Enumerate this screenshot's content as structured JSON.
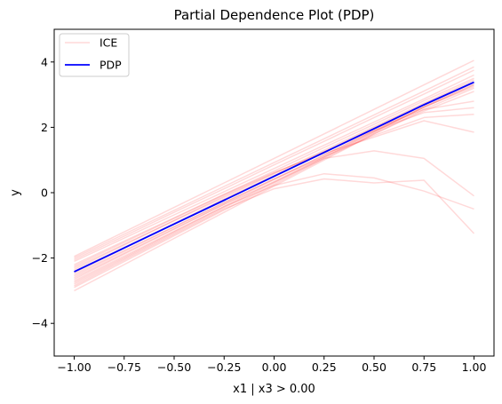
{
  "chart_data": {
    "type": "line",
    "title": "Partial Dependence Plot (PDP)",
    "xlabel": "x1 | x3 > 0.00",
    "ylabel": "y",
    "xlim": [
      -1.1,
      1.1
    ],
    "ylim": [
      -5,
      5
    ],
    "x_ticks": [
      -1.0,
      -0.75,
      -0.5,
      -0.25,
      0.0,
      0.25,
      0.5,
      0.75,
      1.0
    ],
    "x_tick_labels": [
      "−1.00",
      "−0.75",
      "−0.50",
      "−0.25",
      "0.00",
      "0.25",
      "0.50",
      "0.75",
      "1.00"
    ],
    "y_ticks": [
      -4,
      -2,
      0,
      2,
      4
    ],
    "y_tick_labels": [
      "−4",
      "−2",
      "0",
      "2",
      "4"
    ],
    "grid": false,
    "legend": {
      "position": "top-left",
      "entries": [
        {
          "label": "ICE",
          "color": "#ff0000",
          "opacity": 0.15
        },
        {
          "label": "PDP",
          "color": "#0000ff",
          "opacity": 1
        }
      ]
    },
    "ice_color": "#ff0000",
    "pdp_color": "#0000ff",
    "x": [
      -1.0,
      -0.75,
      -0.5,
      -0.25,
      0.0,
      0.25,
      0.5,
      0.75,
      1.0
    ],
    "series": [
      {
        "values": [
          -1.95,
          -1.2,
          -0.45,
          0.3,
          1.05,
          1.8,
          2.55,
          3.3,
          4.05
        ]
      },
      {
        "values": [
          -2.0,
          -1.27,
          -0.54,
          0.19,
          0.92,
          1.65,
          2.38,
          3.11,
          3.85
        ]
      },
      {
        "values": [
          -2.05,
          -1.33,
          -0.6,
          0.12,
          0.85,
          1.57,
          2.3,
          3.02,
          3.75
        ]
      },
      {
        "values": [
          -2.1,
          -1.39,
          -0.68,
          0.03,
          0.74,
          1.45,
          2.16,
          2.87,
          3.6
        ]
      },
      {
        "values": [
          -2.2,
          -1.48,
          -0.77,
          -0.05,
          0.66,
          1.38,
          2.09,
          2.81,
          3.5
        ]
      },
      {
        "values": [
          -2.3,
          -1.58,
          -0.86,
          -0.14,
          0.58,
          1.3,
          2.02,
          2.74,
          3.45
        ]
      },
      {
        "values": [
          -2.4,
          -1.67,
          -0.94,
          -0.21,
          0.52,
          1.25,
          1.98,
          2.71,
          3.4
        ]
      },
      {
        "values": [
          -2.5,
          -1.77,
          -1.04,
          -0.31,
          0.42,
          1.15,
          1.88,
          2.61,
          3.3
        ]
      },
      {
        "values": [
          -2.6,
          -1.85,
          -1.1,
          -0.35,
          0.4,
          1.15,
          1.9,
          2.65,
          3.35
        ]
      },
      {
        "values": [
          -2.7,
          -1.94,
          -1.18,
          -0.42,
          0.34,
          1.1,
          1.86,
          2.62,
          3.3
        ]
      },
      {
        "values": [
          -2.8,
          -2.02,
          -1.24,
          -0.46,
          0.3,
          1.08,
          1.84,
          2.62,
          3.25
        ]
      },
      {
        "values": [
          -2.9,
          -2.11,
          -1.32,
          -0.53,
          0.25,
          1.04,
          1.8,
          2.55,
          3.2
        ]
      },
      {
        "values": [
          -3.0,
          -2.2,
          -1.4,
          -0.6,
          0.2,
          1.0,
          1.8,
          2.5,
          3.1
        ]
      },
      {
        "values": [
          -2.45,
          -1.7,
          -0.95,
          -0.2,
          0.52,
          1.25,
          1.95,
          2.55,
          2.8
        ]
      },
      {
        "values": [
          -2.35,
          -1.6,
          -0.85,
          -0.1,
          0.6,
          1.25,
          1.9,
          2.45,
          2.6
        ]
      },
      {
        "values": [
          -2.55,
          -1.8,
          -1.05,
          -0.3,
          0.42,
          1.1,
          1.75,
          2.3,
          2.4
        ]
      },
      {
        "values": [
          -2.25,
          -1.52,
          -0.79,
          -0.06,
          0.62,
          1.2,
          1.7,
          2.2,
          1.85
        ]
      },
      {
        "values": [
          -2.65,
          -1.88,
          -1.12,
          -0.36,
          0.32,
          1.05,
          1.28,
          1.05,
          -0.1
        ]
      },
      {
        "values": [
          -2.75,
          -1.98,
          -1.2,
          -0.42,
          0.22,
          0.58,
          0.45,
          0.05,
          -0.5
        ]
      },
      {
        "values": [
          -2.85,
          -2.06,
          -1.28,
          -0.5,
          0.12,
          0.42,
          0.3,
          0.38,
          -1.25
        ]
      }
    ],
    "pdp": {
      "name": "PDP",
      "values": [
        -2.42,
        -1.69,
        -0.96,
        -0.23,
        0.5,
        1.23,
        1.96,
        2.69,
        3.38
      ]
    }
  }
}
